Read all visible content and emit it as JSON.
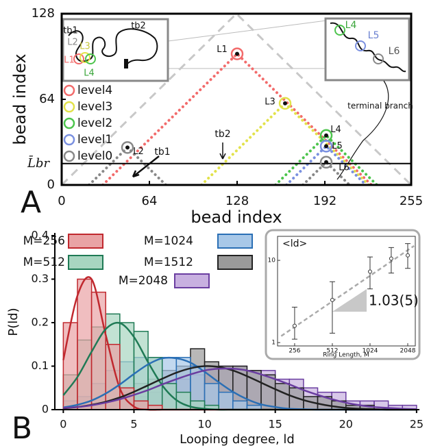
{
  "chart_data": [
    {
      "type": "scatter",
      "panel_label": "A",
      "xlabel": "bead index",
      "ylabel": "bead index",
      "xlim": [
        0,
        255
      ],
      "ylim": [
        0,
        128
      ],
      "xticks": [
        0,
        64,
        128,
        192,
        255
      ],
      "yticks": [
        0,
        64,
        128
      ],
      "envelope_color": "#c8c8c8",
      "series": [
        {
          "name": "level4",
          "color": "#f26b6b",
          "x": [
            128
          ],
          "y": [
            98
          ],
          "labels": [
            "L1"
          ]
        },
        {
          "name": "level3",
          "color": "#e2e24a",
          "x": [
            163
          ],
          "y": [
            61
          ],
          "labels": [
            "L3"
          ]
        },
        {
          "name": "level2",
          "color": "#4cc44c",
          "x": [
            193
          ],
          "y": [
            37
          ],
          "labels": [
            "L4"
          ]
        },
        {
          "name": "level1",
          "color": "#7a90e0",
          "x": [
            193
          ],
          "y": [
            29
          ],
          "labels": [
            "L5"
          ]
        },
        {
          "name": "level0",
          "color": "#888888",
          "x": [
            48,
            193
          ],
          "y": [
            28,
            17
          ],
          "labels": [
            "L2",
            "L6"
          ]
        }
      ],
      "hline": {
        "value": 16,
        "label": "L̄br"
      },
      "annotations": [
        "tb1",
        "tb2",
        "terminal branch"
      ],
      "inset_left_labels": [
        "tb1",
        "tb2",
        "L1",
        "L2",
        "L3",
        "L4"
      ],
      "inset_right_labels": [
        "L4",
        "L5",
        "L6"
      ]
    },
    {
      "type": "histogram",
      "panel_label": "B",
      "xlabel": "Looping degree, ld",
      "ylabel": "P(ld)",
      "xlim": [
        -0.6,
        25.2
      ],
      "ylim": [
        0,
        0.4
      ],
      "xticks": [
        0,
        5,
        10,
        15,
        20,
        25
      ],
      "yticks": [
        0,
        0.1,
        0.2,
        0.3,
        0.4
      ],
      "bins": [
        0,
        1,
        2,
        3,
        4,
        5,
        6,
        7,
        8,
        9,
        10,
        11,
        12,
        13,
        14,
        15,
        16,
        17,
        18,
        19,
        20,
        21,
        22,
        23,
        24,
        25
      ],
      "fit_x": [
        0,
        1,
        2,
        3,
        4,
        5,
        6,
        7,
        8,
        9,
        10,
        11,
        12,
        13,
        14,
        15,
        16,
        17,
        18,
        19,
        20,
        21,
        22,
        23,
        24,
        25
      ],
      "series": [
        {
          "name": "M=256",
          "color": "#c0282e",
          "fill": "#e9a3a5",
          "values": [
            0.2,
            0.3,
            0.27,
            0.15,
            0.05,
            0.02,
            0.01,
            0,
            0,
            0,
            0,
            0,
            0,
            0,
            0,
            0,
            0,
            0,
            0,
            0,
            0,
            0,
            0,
            0,
            0
          ],
          "fit": [
            0.114,
            0.262,
            0.3,
            0.172,
            0.049,
            0.007,
            0,
            0,
            0,
            0,
            0,
            0,
            0,
            0,
            0,
            0,
            0,
            0,
            0,
            0,
            0,
            0,
            0,
            0,
            0,
            0
          ]
        },
        {
          "name": "M=512",
          "color": "#1f7a55",
          "fill": "#a8d5c0",
          "values": [
            0.08,
            0.16,
            0.19,
            0.22,
            0.2,
            0.18,
            0.12,
            0.06,
            0.04,
            0.02,
            0.01,
            0,
            0,
            0,
            0,
            0,
            0,
            0,
            0,
            0,
            0,
            0,
            0,
            0,
            0
          ],
          "fit": [
            0.033,
            0.075,
            0.133,
            0.185,
            0.199,
            0.167,
            0.109,
            0.056,
            0.022,
            0.007,
            0.002,
            0,
            0,
            0,
            0,
            0,
            0,
            0,
            0,
            0,
            0,
            0,
            0,
            0,
            0,
            0
          ]
        },
        {
          "name": "M=1024",
          "color": "#2a6fb5",
          "fill": "#a8c8e8",
          "values": [
            0.02,
            0.03,
            0.06,
            0.09,
            0.11,
            0.12,
            0.12,
            0.12,
            0.12,
            0.1,
            0.06,
            0.04,
            0.02,
            0.01,
            0,
            0,
            0,
            0,
            0,
            0,
            0,
            0,
            0,
            0,
            0
          ],
          "fit": [
            0.005,
            0.011,
            0.021,
            0.037,
            0.058,
            0.082,
            0.104,
            0.118,
            0.118,
            0.108,
            0.087,
            0.063,
            0.041,
            0.024,
            0.012,
            0.006,
            0.002,
            0.001,
            0,
            0,
            0,
            0,
            0,
            0,
            0,
            0
          ]
        },
        {
          "name": "M=1512",
          "color": "#222222",
          "fill": "#9a9a9a",
          "values": [
            0,
            0,
            0.01,
            0.02,
            0.04,
            0.06,
            0.07,
            0.09,
            0.1,
            0.14,
            0.11,
            0.1,
            0.1,
            0.09,
            0.08,
            0.06,
            0.05,
            0.03,
            0.03,
            0.02,
            0.01,
            0.01,
            0,
            0,
            0
          ],
          "fit": [
            0.003,
            0.006,
            0.011,
            0.018,
            0.028,
            0.041,
            0.056,
            0.071,
            0.085,
            0.095,
            0.1,
            0.098,
            0.09,
            0.077,
            0.062,
            0.047,
            0.033,
            0.022,
            0.014,
            0.008,
            0.004,
            0.002,
            0.001,
            0,
            0,
            0
          ]
        },
        {
          "name": "M=2048",
          "color": "#6a3da0",
          "fill": "#c8b0e0",
          "values": [
            0,
            0,
            0,
            0.01,
            0.02,
            0.03,
            0.04,
            0.06,
            0.07,
            0.08,
            0.1,
            0.1,
            0.1,
            0.09,
            0.09,
            0.07,
            0.07,
            0.05,
            0.04,
            0.04,
            0.02,
            0.02,
            0.02,
            0.01,
            0.01
          ],
          "fit": [
            0.004,
            0.006,
            0.01,
            0.016,
            0.024,
            0.034,
            0.045,
            0.058,
            0.07,
            0.081,
            0.09,
            0.094,
            0.094,
            0.09,
            0.081,
            0.07,
            0.058,
            0.045,
            0.034,
            0.024,
            0.016,
            0.01,
            0.006,
            0.004,
            0.002,
            0.001
          ]
        }
      ]
    },
    {
      "type": "errorbar",
      "ylabel": "<ld>",
      "xlabel": "Ring Length, M",
      "log_x": true,
      "log_y": true,
      "xlim": [
        187,
        2353
      ],
      "ylim": [
        0.91,
        19.6
      ],
      "xticks": [
        256,
        512,
        1024,
        2048
      ],
      "yticks": [
        1,
        10
      ],
      "x": [
        256,
        512,
        1024,
        1512,
        2048
      ],
      "values": [
        1.6,
        3.3,
        7.3,
        10.5,
        11.5
      ],
      "error_low": [
        0.5,
        2.0,
        2.8,
        3.5,
        3.5
      ],
      "error_high": [
        1.1,
        2.2,
        3.7,
        3.8,
        4.5
      ],
      "fit_x": [
        200,
        2300
      ],
      "fit_y": [
        1.2,
        15
      ],
      "slope_label": "1.03(5)"
    }
  ]
}
